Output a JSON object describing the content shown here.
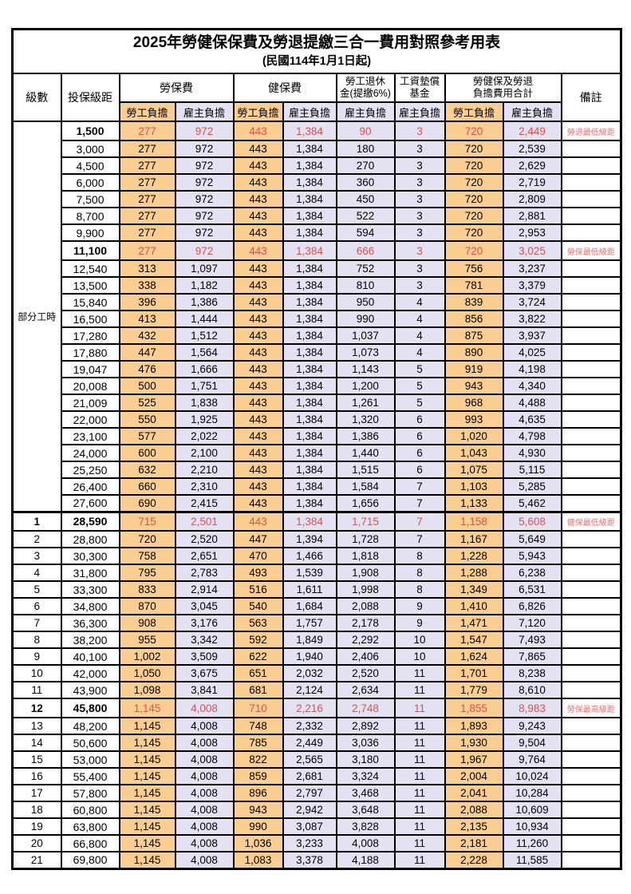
{
  "title": "2025年勞健保保費及勞退提繳三合一費用對照參考用表",
  "subtitle": "(民國114年1月1日起)",
  "colors": {
    "employee_bg": "#FACD91",
    "employer_bg": "#E4E2F2",
    "highlight_red": "#E0504B",
    "note_red": "#EE6F6F",
    "border": "#000000"
  },
  "header": {
    "level": "級數",
    "bracket": "投保級距",
    "labor_insurance": "勞保費",
    "health_insurance": "健保費",
    "pension_line1": "勞工退休",
    "pension_line2": "金(提繳6%)",
    "wage_fund_line1": "工資墊償",
    "wage_fund_line2": "基金",
    "total_line1": "勞健保及勞退",
    "total_line2": "負擔費用合計",
    "employee": "勞工負擔",
    "employer": "雇主負擔",
    "remarks": "備註"
  },
  "table": {
    "part_time_label": "部分工時",
    "part_time_rowspan": 23,
    "column_order": [
      "級數",
      "投保級距",
      "勞保費-勞工負擔",
      "勞保費-雇主負擔",
      "健保費-勞工負擔",
      "健保費-雇主負擔",
      "勞工退休金(提繳6%)-雇主負擔",
      "工資墊償基金-雇主負擔",
      "合計-勞工負擔",
      "合計-雇主負擔",
      "備註"
    ],
    "rows": [
      [
        "",
        "1,500",
        "277",
        "972",
        "443",
        "1,384",
        "90",
        "3",
        "720",
        "2,449",
        "勞退最低級距",
        1
      ],
      [
        "",
        "3,000",
        "277",
        "972",
        "443",
        "1,384",
        "180",
        "3",
        "720",
        "2,539",
        "",
        0
      ],
      [
        "",
        "4,500",
        "277",
        "972",
        "443",
        "1,384",
        "270",
        "3",
        "720",
        "2,629",
        "",
        0
      ],
      [
        "",
        "6,000",
        "277",
        "972",
        "443",
        "1,384",
        "360",
        "3",
        "720",
        "2,719",
        "",
        0
      ],
      [
        "",
        "7,500",
        "277",
        "972",
        "443",
        "1,384",
        "450",
        "3",
        "720",
        "2,809",
        "",
        0
      ],
      [
        "",
        "8,700",
        "277",
        "972",
        "443",
        "1,384",
        "522",
        "3",
        "720",
        "2,881",
        "",
        0
      ],
      [
        "",
        "9,900",
        "277",
        "972",
        "443",
        "1,384",
        "594",
        "3",
        "720",
        "2,953",
        "",
        0
      ],
      [
        "",
        "11,100",
        "277",
        "972",
        "443",
        "1,384",
        "666",
        "3",
        "720",
        "3,025",
        "勞保最低級距",
        1
      ],
      [
        "",
        "12,540",
        "313",
        "1,097",
        "443",
        "1,384",
        "752",
        "3",
        "756",
        "3,237",
        "",
        0
      ],
      [
        "",
        "13,500",
        "338",
        "1,182",
        "443",
        "1,384",
        "810",
        "3",
        "781",
        "3,379",
        "",
        0
      ],
      [
        "",
        "15,840",
        "396",
        "1,386",
        "443",
        "1,384",
        "950",
        "4",
        "839",
        "3,724",
        "",
        0
      ],
      [
        "",
        "16,500",
        "413",
        "1,444",
        "443",
        "1,384",
        "990",
        "4",
        "856",
        "3,822",
        "",
        0
      ],
      [
        "",
        "17,280",
        "432",
        "1,512",
        "443",
        "1,384",
        "1,037",
        "4",
        "875",
        "3,937",
        "",
        0
      ],
      [
        "",
        "17,880",
        "447",
        "1,564",
        "443",
        "1,384",
        "1,073",
        "4",
        "890",
        "4,025",
        "",
        0
      ],
      [
        "",
        "19,047",
        "476",
        "1,666",
        "443",
        "1,384",
        "1,143",
        "5",
        "919",
        "4,198",
        "",
        0
      ],
      [
        "",
        "20,008",
        "500",
        "1,751",
        "443",
        "1,384",
        "1,200",
        "5",
        "943",
        "4,340",
        "",
        0
      ],
      [
        "",
        "21,009",
        "525",
        "1,838",
        "443",
        "1,384",
        "1,261",
        "5",
        "968",
        "4,488",
        "",
        0
      ],
      [
        "",
        "22,000",
        "550",
        "1,925",
        "443",
        "1,384",
        "1,320",
        "6",
        "993",
        "4,635",
        "",
        0
      ],
      [
        "",
        "23,100",
        "577",
        "2,022",
        "443",
        "1,384",
        "1,386",
        "6",
        "1,020",
        "4,798",
        "",
        0
      ],
      [
        "",
        "24,000",
        "600",
        "2,100",
        "443",
        "1,384",
        "1,440",
        "6",
        "1,043",
        "4,930",
        "",
        0
      ],
      [
        "",
        "25,250",
        "632",
        "2,210",
        "443",
        "1,384",
        "1,515",
        "6",
        "1,075",
        "5,115",
        "",
        0
      ],
      [
        "",
        "26,400",
        "660",
        "2,310",
        "443",
        "1,384",
        "1,584",
        "7",
        "1,103",
        "5,285",
        "",
        0
      ],
      [
        "",
        "27,600",
        "690",
        "2,415",
        "443",
        "1,384",
        "1,656",
        "7",
        "1,133",
        "5,462",
        "",
        0
      ],
      [
        "1",
        "28,590",
        "715",
        "2,501",
        "443",
        "1,384",
        "1,715",
        "7",
        "1,158",
        "5,608",
        "健保最低級距",
        1
      ],
      [
        "2",
        "28,800",
        "720",
        "2,520",
        "447",
        "1,394",
        "1,728",
        "7",
        "1,167",
        "5,649",
        "",
        0
      ],
      [
        "3",
        "30,300",
        "758",
        "2,651",
        "470",
        "1,466",
        "1,818",
        "8",
        "1,228",
        "5,943",
        "",
        0
      ],
      [
        "4",
        "31,800",
        "795",
        "2,783",
        "493",
        "1,539",
        "1,908",
        "8",
        "1,288",
        "6,238",
        "",
        0
      ],
      [
        "5",
        "33,300",
        "833",
        "2,914",
        "516",
        "1,611",
        "1,998",
        "8",
        "1,349",
        "6,531",
        "",
        0
      ],
      [
        "6",
        "34,800",
        "870",
        "3,045",
        "540",
        "1,684",
        "2,088",
        "9",
        "1,410",
        "6,826",
        "",
        0
      ],
      [
        "7",
        "36,300",
        "908",
        "3,176",
        "563",
        "1,757",
        "2,178",
        "9",
        "1,471",
        "7,120",
        "",
        0
      ],
      [
        "8",
        "38,200",
        "955",
        "3,342",
        "592",
        "1,849",
        "2,292",
        "10",
        "1,547",
        "7,493",
        "",
        0
      ],
      [
        "9",
        "40,100",
        "1,002",
        "3,509",
        "622",
        "1,940",
        "2,406",
        "10",
        "1,624",
        "7,865",
        "",
        0
      ],
      [
        "10",
        "42,000",
        "1,050",
        "3,675",
        "651",
        "2,032",
        "2,520",
        "11",
        "1,701",
        "8,238",
        "",
        0
      ],
      [
        "11",
        "43,900",
        "1,098",
        "3,841",
        "681",
        "2,124",
        "2,634",
        "11",
        "1,779",
        "8,610",
        "",
        0
      ],
      [
        "12",
        "45,800",
        "1,145",
        "4,008",
        "710",
        "2,216",
        "2,748",
        "11",
        "1,855",
        "8,983",
        "勞保最高級距",
        1
      ],
      [
        "13",
        "48,200",
        "1,145",
        "4,008",
        "748",
        "2,332",
        "2,892",
        "11",
        "1,893",
        "9,243",
        "",
        0
      ],
      [
        "14",
        "50,600",
        "1,145",
        "4,008",
        "785",
        "2,449",
        "3,036",
        "11",
        "1,930",
        "9,504",
        "",
        0
      ],
      [
        "15",
        "53,000",
        "1,145",
        "4,008",
        "822",
        "2,565",
        "3,180",
        "11",
        "1,967",
        "9,764",
        "",
        0
      ],
      [
        "16",
        "55,400",
        "1,145",
        "4,008",
        "859",
        "2,681",
        "3,324",
        "11",
        "2,004",
        "10,024",
        "",
        0
      ],
      [
        "17",
        "57,800",
        "1,145",
        "4,008",
        "896",
        "2,797",
        "3,468",
        "11",
        "2,041",
        "10,284",
        "",
        0
      ],
      [
        "18",
        "60,800",
        "1,145",
        "4,008",
        "943",
        "2,942",
        "3,648",
        "11",
        "2,088",
        "10,609",
        "",
        0
      ],
      [
        "19",
        "63,800",
        "1,145",
        "4,008",
        "990",
        "3,087",
        "3,828",
        "11",
        "2,135",
        "10,934",
        "",
        0
      ],
      [
        "20",
        "66,800",
        "1,145",
        "4,008",
        "1,036",
        "3,233",
        "4,008",
        "11",
        "2,181",
        "11,260",
        "",
        0
      ],
      [
        "21",
        "69,800",
        "1,145",
        "4,008",
        "1,083",
        "3,378",
        "4,188",
        "11",
        "2,228",
        "11,585",
        "",
        0
      ]
    ]
  }
}
